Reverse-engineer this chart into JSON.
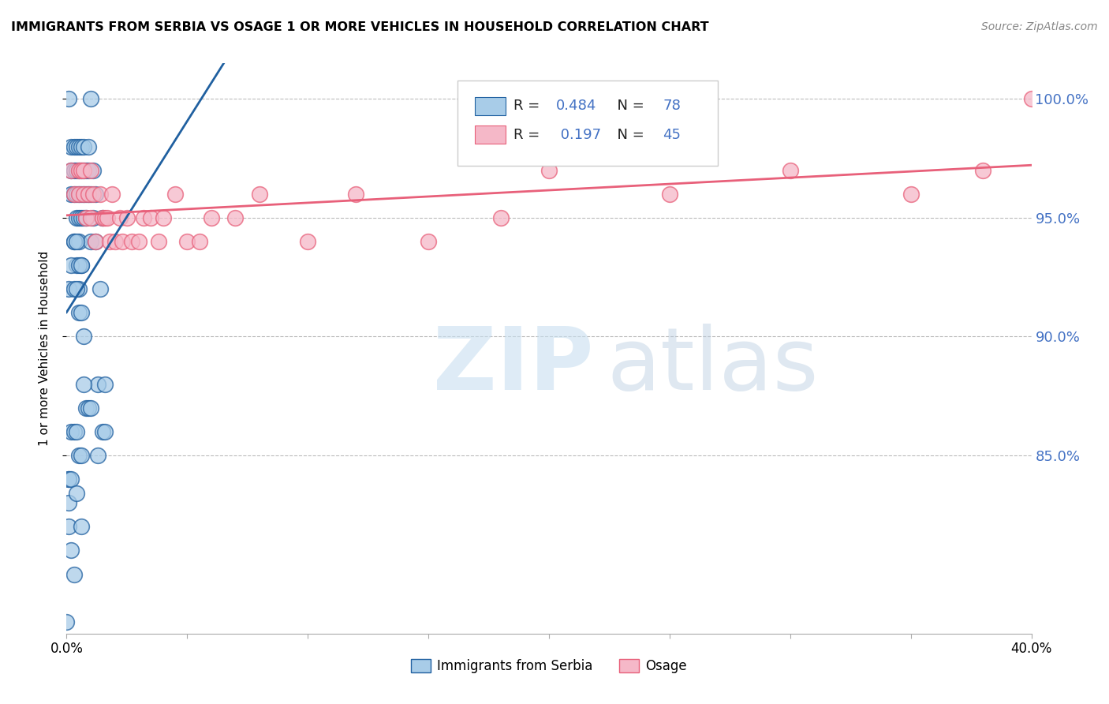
{
  "title": "IMMIGRANTS FROM SERBIA VS OSAGE 1 OR MORE VEHICLES IN HOUSEHOLD CORRELATION CHART",
  "source": "Source: ZipAtlas.com",
  "ylabel": "1 or more Vehicles in Household",
  "legend_label1": "Immigrants from Serbia",
  "legend_label2": "Osage",
  "R1": 0.484,
  "N1": 78,
  "R2": 0.197,
  "N2": 45,
  "color_serbia": "#a8cce8",
  "color_osage": "#f5b8c8",
  "color_serbia_line": "#2060a0",
  "color_osage_line": "#e8607a",
  "color_blue_text": "#4472c4",
  "xlim": [
    0.0,
    0.4
  ],
  "ylim": [
    0.775,
    1.015
  ],
  "ytick_vals": [
    0.85,
    0.9,
    0.95,
    1.0
  ],
  "ytick_labs": [
    "85.0%",
    "90.0%",
    "95.0%",
    "100.0%"
  ],
  "xtick_vals": [
    0.0,
    0.05,
    0.1,
    0.15,
    0.2,
    0.25,
    0.3,
    0.35,
    0.4
  ],
  "serbia_x": [
    0.0,
    0.001,
    0.001,
    0.002,
    0.002,
    0.002,
    0.003,
    0.003,
    0.003,
    0.003,
    0.004,
    0.004,
    0.004,
    0.004,
    0.004,
    0.005,
    0.005,
    0.005,
    0.005,
    0.005,
    0.005,
    0.006,
    0.006,
    0.006,
    0.006,
    0.006,
    0.007,
    0.007,
    0.007,
    0.007,
    0.008,
    0.008,
    0.008,
    0.009,
    0.009,
    0.009,
    0.01,
    0.01,
    0.01,
    0.011,
    0.011,
    0.012,
    0.012,
    0.013,
    0.013,
    0.014,
    0.015,
    0.015,
    0.016,
    0.016,
    0.001,
    0.002,
    0.003,
    0.003,
    0.004,
    0.004,
    0.005,
    0.005,
    0.006,
    0.006,
    0.007,
    0.007,
    0.008,
    0.009,
    0.01,
    0.002,
    0.003,
    0.004,
    0.005,
    0.006,
    0.001,
    0.001,
    0.002,
    0.003,
    0.001,
    0.002,
    0.004,
    0.006
  ],
  "serbia_y": [
    0.78,
    0.84,
    1.0,
    0.96,
    0.97,
    0.98,
    0.94,
    0.96,
    0.97,
    0.98,
    0.93,
    0.95,
    0.96,
    0.97,
    0.98,
    0.92,
    0.94,
    0.95,
    0.96,
    0.97,
    0.98,
    0.93,
    0.95,
    0.96,
    0.97,
    0.98,
    0.95,
    0.96,
    0.97,
    0.98,
    0.95,
    0.96,
    0.97,
    0.96,
    0.97,
    0.98,
    0.94,
    0.96,
    1.0,
    0.95,
    0.97,
    0.94,
    0.96,
    0.85,
    0.88,
    0.92,
    0.86,
    0.95,
    0.86,
    0.88,
    0.92,
    0.93,
    0.92,
    0.94,
    0.92,
    0.94,
    0.91,
    0.93,
    0.91,
    0.93,
    0.88,
    0.9,
    0.87,
    0.87,
    0.87,
    0.86,
    0.86,
    0.86,
    0.85,
    0.85,
    0.83,
    0.82,
    0.81,
    0.8,
    0.84,
    0.84,
    0.834,
    0.82
  ],
  "osage_x": [
    0.002,
    0.003,
    0.005,
    0.005,
    0.006,
    0.007,
    0.007,
    0.008,
    0.009,
    0.01,
    0.01,
    0.011,
    0.012,
    0.014,
    0.015,
    0.016,
    0.017,
    0.018,
    0.019,
    0.02,
    0.022,
    0.023,
    0.025,
    0.027,
    0.03,
    0.032,
    0.035,
    0.038,
    0.04,
    0.045,
    0.05,
    0.055,
    0.06,
    0.07,
    0.08,
    0.1,
    0.12,
    0.15,
    0.18,
    0.2,
    0.25,
    0.3,
    0.35,
    0.38,
    0.4
  ],
  "osage_y": [
    0.97,
    0.96,
    0.97,
    0.96,
    0.97,
    0.96,
    0.97,
    0.95,
    0.96,
    0.95,
    0.97,
    0.96,
    0.94,
    0.96,
    0.95,
    0.95,
    0.95,
    0.94,
    0.96,
    0.94,
    0.95,
    0.94,
    0.95,
    0.94,
    0.94,
    0.95,
    0.95,
    0.94,
    0.95,
    0.96,
    0.94,
    0.94,
    0.95,
    0.95,
    0.96,
    0.94,
    0.96,
    0.94,
    0.95,
    0.97,
    0.96,
    0.97,
    0.96,
    0.97,
    1.0
  ]
}
